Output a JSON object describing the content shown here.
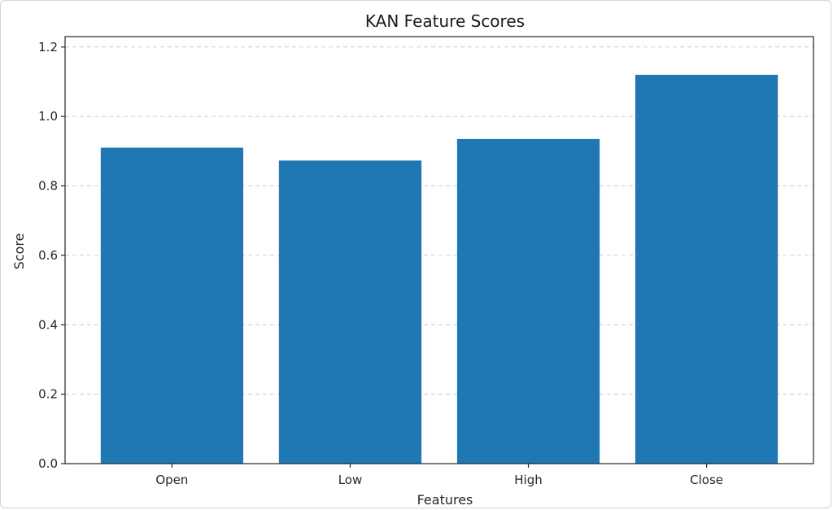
{
  "chart_data": {
    "type": "bar",
    "title": "KAN Feature Scores",
    "xlabel": "Features",
    "ylabel": "Score",
    "categories": [
      "Open",
      "Low",
      "High",
      "Close"
    ],
    "values": [
      0.91,
      0.873,
      0.935,
      1.12
    ],
    "ylim": [
      0,
      1.23
    ],
    "yticks": [
      0.0,
      0.2,
      0.4,
      0.6,
      0.8,
      1.0,
      1.2
    ],
    "ytick_labels": [
      "0.0",
      "0.2",
      "0.4",
      "0.6",
      "0.8",
      "1.0",
      "1.2"
    ],
    "grid": "y-dashed",
    "bar_color": "#1f77b4",
    "grid_color": "#cccccc"
  }
}
